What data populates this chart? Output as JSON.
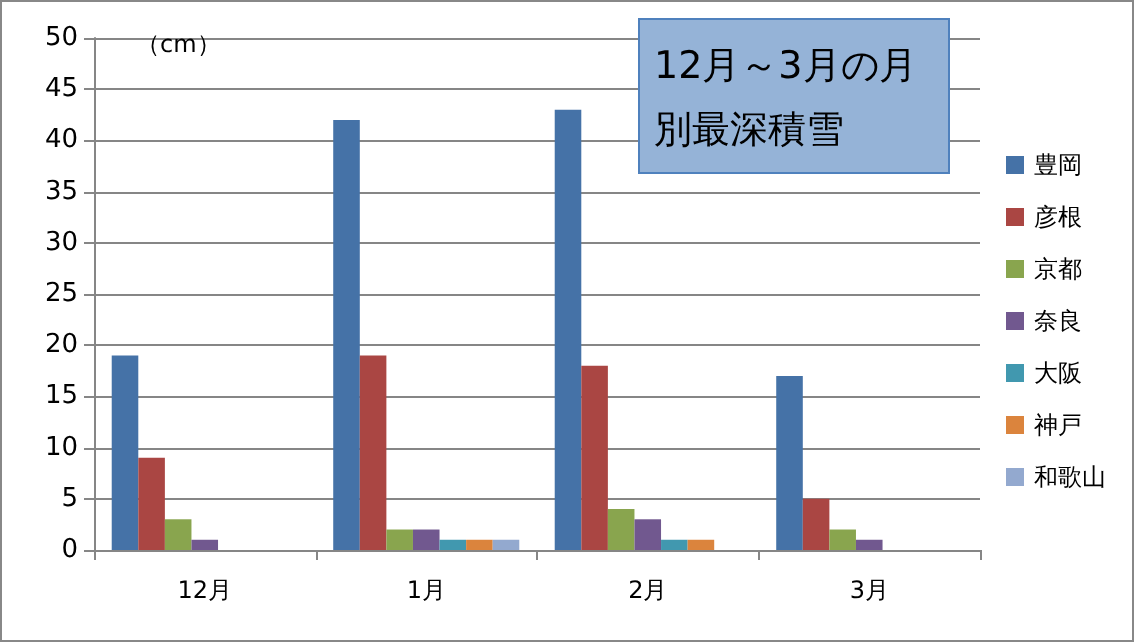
{
  "chart_data": {
    "type": "bar",
    "title": "12月～3月の月別最深積雪",
    "ylabel": "（cm）",
    "categories": [
      "12月",
      "1月",
      "2月",
      "3月"
    ],
    "series": [
      {
        "name": "豊岡",
        "color": "#4572a7",
        "values": [
          19,
          42,
          43,
          17
        ]
      },
      {
        "name": "彦根",
        "color": "#aa4643",
        "values": [
          9,
          19,
          18,
          5
        ]
      },
      {
        "name": "京都",
        "color": "#89a54e",
        "values": [
          3,
          2,
          4,
          2
        ]
      },
      {
        "name": "奈良",
        "color": "#71588f",
        "values": [
          1,
          2,
          3,
          1
        ]
      },
      {
        "name": "大阪",
        "color": "#4198af",
        "values": [
          0,
          1,
          1,
          0
        ]
      },
      {
        "name": "神戸",
        "color": "#db843d",
        "values": [
          0,
          1,
          1,
          0
        ]
      },
      {
        "name": "和歌山",
        "color": "#93a9cf",
        "values": [
          0,
          1,
          0,
          0
        ]
      }
    ],
    "ylim": [
      0,
      50
    ],
    "yticks": [
      0,
      5,
      10,
      15,
      20,
      25,
      30,
      35,
      40,
      45,
      50
    ],
    "grid": "y",
    "legend": "right"
  }
}
